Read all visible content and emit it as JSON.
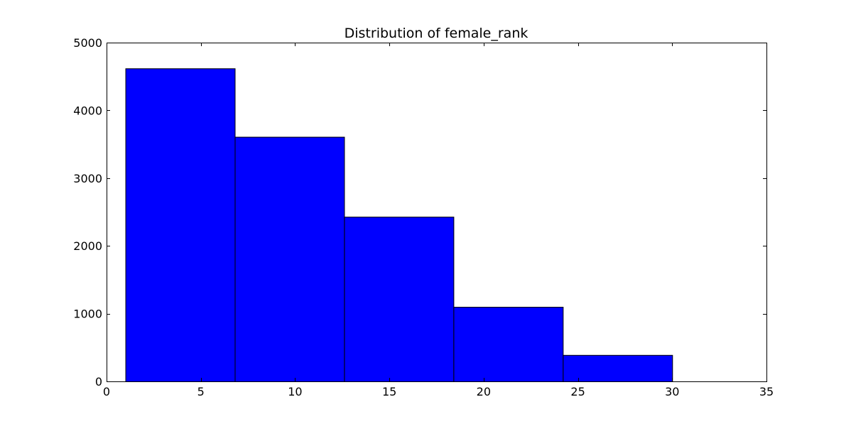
{
  "chart_data": {
    "type": "bar",
    "title": "Distribution of female_rank",
    "xlabel": "",
    "ylabel": "",
    "xlim": [
      0,
      35
    ],
    "ylim": [
      0,
      5000
    ],
    "xticks": [
      0,
      5,
      10,
      15,
      20,
      25,
      30,
      35
    ],
    "yticks": [
      0,
      1000,
      2000,
      3000,
      4000,
      5000
    ],
    "bins": [
      {
        "x0": 1.0,
        "x1": 6.8,
        "value": 4620
      },
      {
        "x0": 6.8,
        "x1": 12.6,
        "value": 3610
      },
      {
        "x0": 12.6,
        "x1": 18.4,
        "value": 2430
      },
      {
        "x0": 18.4,
        "x1": 24.2,
        "value": 1100
      },
      {
        "x0": 24.2,
        "x1": 30.0,
        "value": 390
      }
    ],
    "bar_color": "#0000ff",
    "edge_color": "#000000",
    "grid": false,
    "legend": "none"
  }
}
